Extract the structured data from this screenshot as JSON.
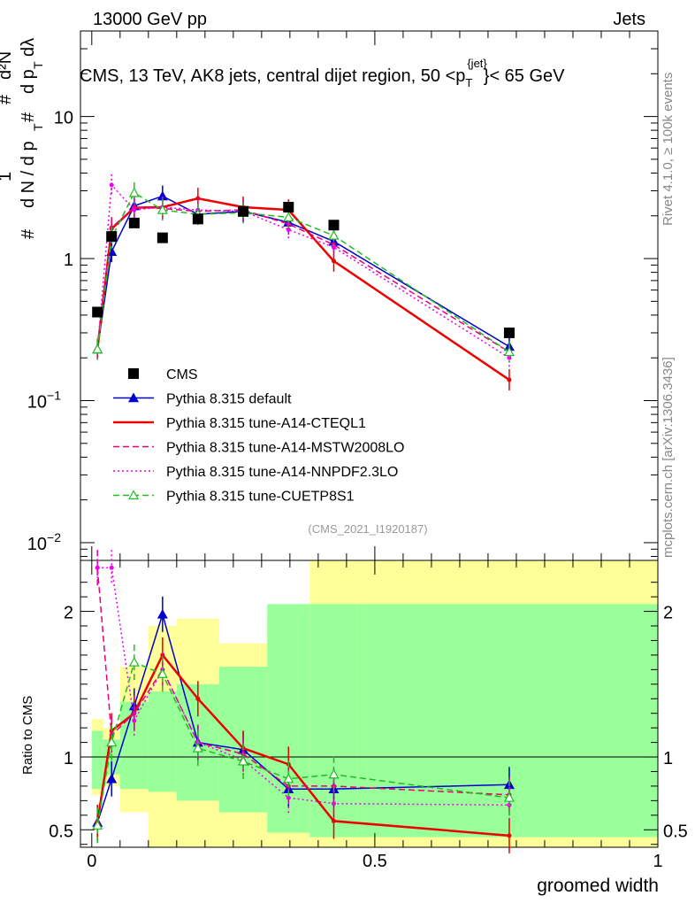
{
  "header": {
    "left": "13000 GeV pp",
    "right": "Jets",
    "title_main": "CMS, 13 TeV, AK8 jets, central dijet region, 50 <p",
    "title_sub": "T",
    "title_sup": "{jet}",
    "title_end": "}< 65 GeV",
    "side_right_top": "Rivet 4.1.0, ≥ 100k events",
    "side_right_bottom": "mcplots.cern.ch [arXiv:1306.3436]",
    "analysis_id": "(CMS_2021_I1920187)"
  },
  "axes": {
    "ylabel_top": "1/N dN/dp_T dλ",
    "ylabel_bottom": "Ratio to CMS",
    "xlabel": "groomed width",
    "top_ticks": [
      {
        "v": 0.01,
        "label": "10",
        "exp": "−2"
      },
      {
        "v": 0.1,
        "label": "10",
        "exp": "−1"
      },
      {
        "v": 1,
        "label": "1",
        "exp": ""
      },
      {
        "v": 10,
        "label": "10",
        "exp": ""
      }
    ],
    "ratio_ticks": [
      {
        "v": 0.5,
        "label": "0.5"
      },
      {
        "v": 1,
        "label": "1"
      },
      {
        "v": 2,
        "label": "2"
      }
    ],
    "x_ticks": [
      {
        "v": 0,
        "label": "0"
      },
      {
        "v": 0.5,
        "label": "0.5"
      },
      {
        "v": 1,
        "label": "1"
      }
    ]
  },
  "chart_data": {
    "type": "line",
    "title": "CMS, 13 TeV, AK8 jets, central dijet region, 50 < pT jet < 65 GeV",
    "xlabel": "groomed width",
    "ylabel": "1/N dN/dpT dλ",
    "xlim": [
      -0.02,
      1.0
    ],
    "ylim_log": [
      0.0075,
      40
    ],
    "ratio_ylim": [
      0.38,
      2.35
    ],
    "x": [
      0.01,
      0.035,
      0.075,
      0.125,
      0.1875,
      0.2675,
      0.3475,
      0.4275,
      0.7375
    ],
    "data": {
      "name": "CMS",
      "values": [
        0.42,
        1.43,
        1.78,
        1.4,
        1.9,
        2.15,
        2.3,
        1.72,
        0.3
      ],
      "band_inner": [
        [
          0.78,
          1.18
        ],
        [
          0.88,
          1.12
        ],
        [
          0.78,
          1.38
        ],
        [
          0.76,
          1.45
        ],
        [
          0.7,
          1.5
        ],
        [
          0.62,
          1.62
        ],
        [
          0.48,
          2.05
        ],
        [
          0.45,
          2.05
        ],
        [
          0.45,
          2.05
        ]
      ],
      "band_outer": [
        [
          0.74,
          1.26
        ],
        [
          0.8,
          1.2
        ],
        [
          0.62,
          1.62
        ],
        [
          0.38,
          1.9
        ],
        [
          0.38,
          1.95
        ],
        [
          0.38,
          1.78
        ],
        [
          0.38,
          1.95
        ],
        [
          0.38,
          2.35
        ],
        [
          0.38,
          2.35
        ]
      ],
      "bin_edges": [
        0,
        0.02,
        0.05,
        0.1,
        0.15,
        0.225,
        0.31,
        0.385,
        0.47,
        1.0
      ]
    },
    "series": [
      {
        "name": "Pythia 8.315 default",
        "color": "#0000cc",
        "style": "solid",
        "marker": "tri-filled",
        "values": [
          0.23,
          1.12,
          2.35,
          2.75,
          2.05,
          2.15,
          1.8,
          1.32,
          0.24
        ],
        "ratio": [
          0.55,
          0.85,
          1.35,
          1.98,
          1.1,
          1.05,
          0.78,
          0.78,
          0.81
        ]
      },
      {
        "name": "Pythia 8.315 tune-A14-CTEQL1",
        "color": "#ee0000",
        "style": "solid",
        "marker": "none",
        "values": [
          0.23,
          1.62,
          2.28,
          2.3,
          2.65,
          2.3,
          2.2,
          0.96,
          0.14
        ],
        "ratio": [
          0.55,
          1.18,
          1.3,
          1.7,
          1.4,
          1.06,
          0.95,
          0.56,
          0.46
        ]
      },
      {
        "name": "Pythia 8.315 tune-A14-MSTW2008LO",
        "color": "#e8007a",
        "style": "dash",
        "marker": "none",
        "values": [
          0.23,
          1.65,
          2.3,
          2.25,
          2.15,
          2.2,
          1.75,
          1.25,
          0.22
        ],
        "ratio": [
          2.3,
          1.15,
          1.3,
          1.6,
          1.1,
          1.02,
          0.8,
          0.8,
          0.74
        ]
      },
      {
        "name": "Pythia 8.315 tune-A14-NNPDF2.3LO",
        "color": "#ee00ee",
        "style": "dot",
        "marker": "none",
        "values": [
          0.23,
          3.3,
          2.2,
          2.3,
          2.2,
          2.15,
          1.6,
          1.2,
          0.2
        ],
        "ratio": [
          2.3,
          2.3,
          1.25,
          1.6,
          1.1,
          0.98,
          0.72,
          0.68,
          0.67
        ]
      },
      {
        "name": "Pythia 8.315 tune-CUETP8S1",
        "color": "#22bb22",
        "style": "dash",
        "marker": "tri-open",
        "values": [
          0.23,
          1.4,
          2.9,
          2.2,
          2.05,
          2.1,
          1.95,
          1.45,
          0.22
        ],
        "ratio": [
          0.53,
          1.1,
          1.65,
          1.57,
          1.06,
          0.97,
          0.85,
          0.88,
          0.72
        ]
      }
    ]
  }
}
